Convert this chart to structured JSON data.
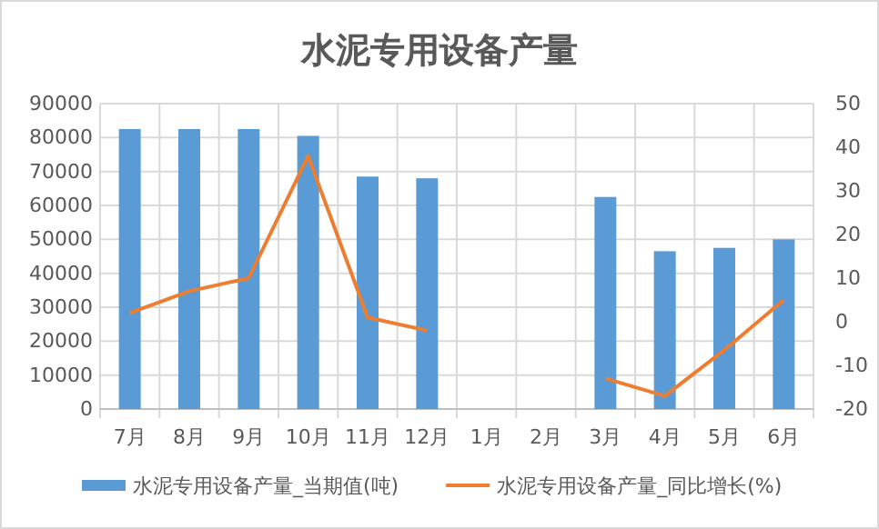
{
  "chart_data": {
    "type": "bar",
    "title": "水泥专用设备产量",
    "categories": [
      "7月",
      "8月",
      "9月",
      "10月",
      "11月",
      "12月",
      "1月",
      "2月",
      "3月",
      "4月",
      "5月",
      "6月"
    ],
    "series": [
      {
        "name": "水泥专用设备产量_当期值(吨)",
        "color": "#5b9bd5",
        "values": [
          82500,
          82500,
          82500,
          80500,
          68500,
          68000,
          null,
          null,
          62500,
          46500,
          47500,
          50000
        ]
      },
      {
        "name": "水泥专用设备产量_同比增长(%)",
        "type": "line",
        "axis": "y2",
        "color": "#ed7d31",
        "values": [
          2,
          7,
          10,
          38,
          1,
          -2,
          null,
          null,
          -13,
          -17,
          -6.5,
          5
        ]
      }
    ],
    "ylim": [
      0,
      90000
    ],
    "yticks": [
      0,
      10000,
      20000,
      30000,
      40000,
      50000,
      60000,
      70000,
      80000,
      90000
    ],
    "y2lim": [
      -20,
      50
    ],
    "y2ticks": [
      -20,
      -10,
      0,
      10,
      20,
      30,
      40,
      50
    ],
    "grid": true,
    "legend": "bottom"
  }
}
